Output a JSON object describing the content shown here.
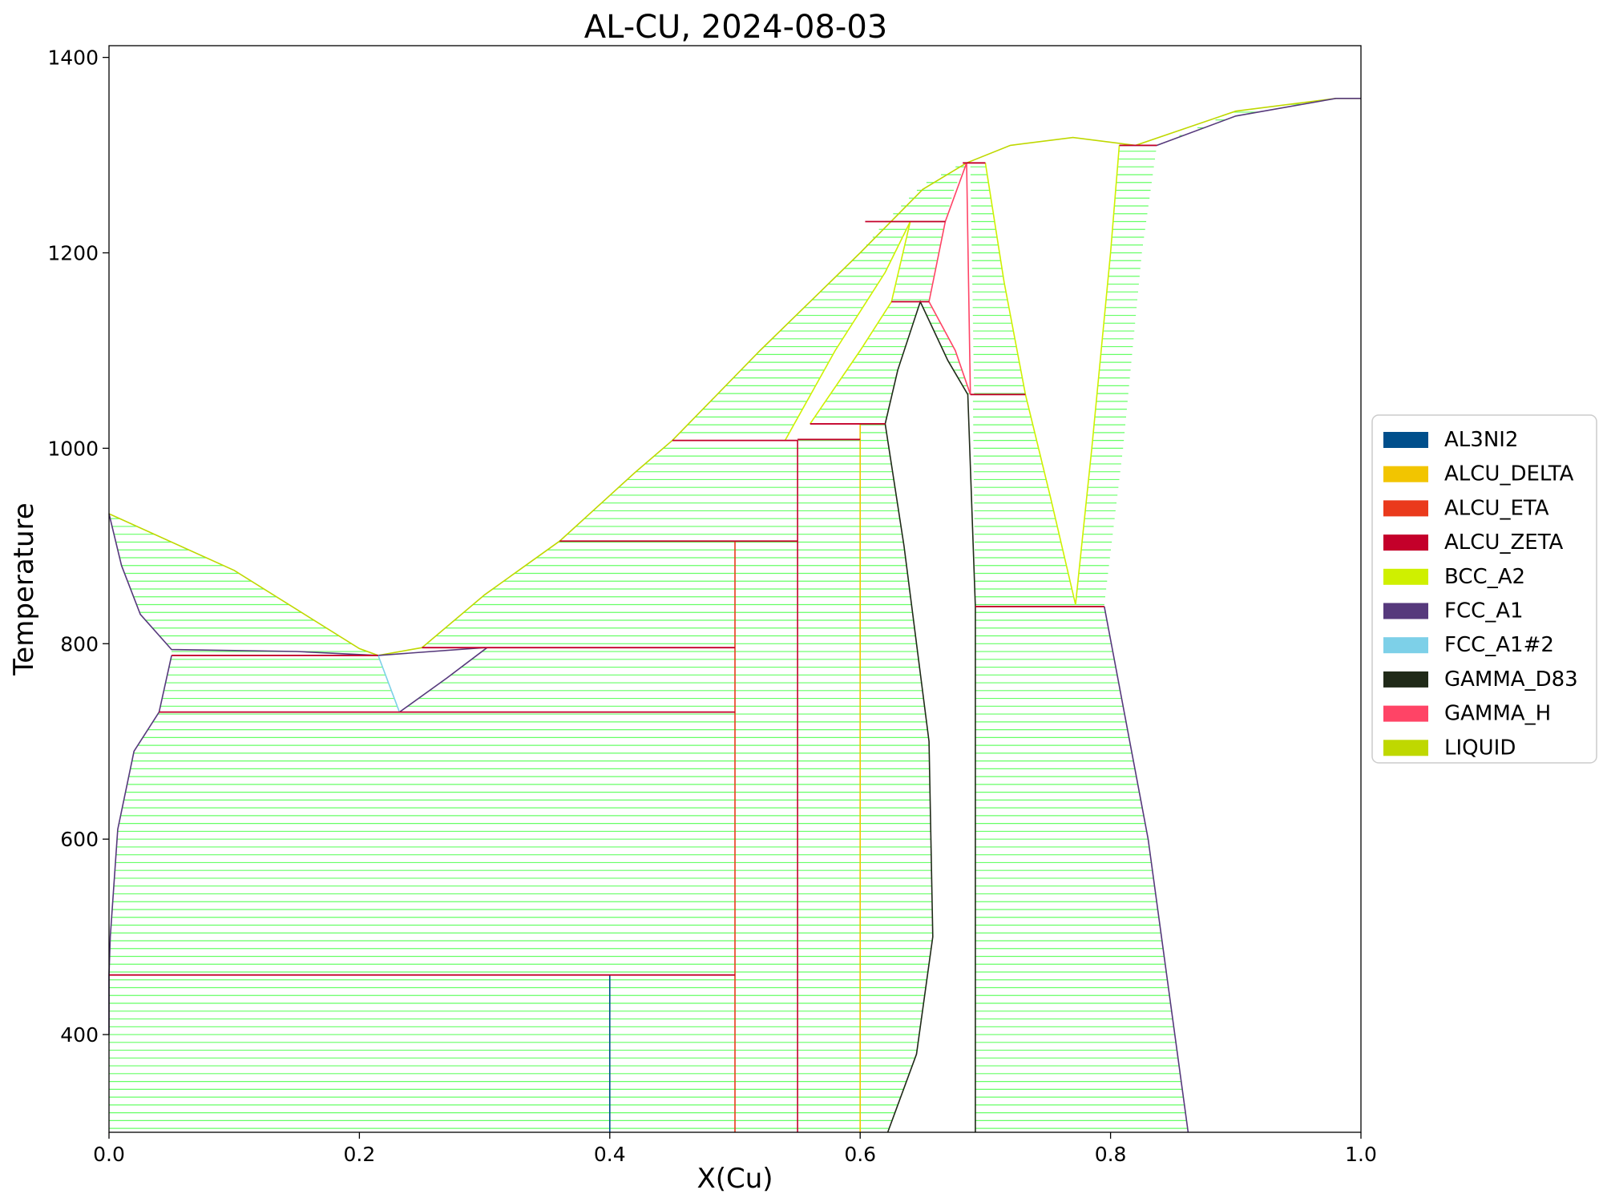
{
  "chart_data": {
    "type": "line",
    "title": "AL-CU, 2024-08-03",
    "xlabel": "X(Cu)",
    "ylabel": "Temperature",
    "xlim": [
      0.0,
      1.0
    ],
    "ylim": [
      300,
      1412
    ],
    "xticks": [
      0.0,
      0.2,
      0.4,
      0.6,
      0.8,
      1.0
    ],
    "xtick_labels": [
      "0.0",
      "0.2",
      "0.4",
      "0.6",
      "0.8",
      "1.0"
    ],
    "yticks": [
      400,
      600,
      800,
      1000,
      1200,
      1400
    ],
    "ytick_labels": [
      "400",
      "600",
      "800",
      "1000",
      "1200",
      "1400"
    ],
    "grid": false,
    "legend_position": "right",
    "tie_line_color": "#66ff66",
    "legend": [
      {
        "name": "AL3NI2",
        "color": "#004f8c"
      },
      {
        "name": "ALCU_DELTA",
        "color": "#f2c500"
      },
      {
        "name": "ALCU_ETA",
        "color": "#ea3a1c"
      },
      {
        "name": "ALCU_ZETA",
        "color": "#c4002a"
      },
      {
        "name": "BCC_A2",
        "color": "#cff000"
      },
      {
        "name": "FCC_A1",
        "color": "#56397c"
      },
      {
        "name": "FCC_A1#2",
        "color": "#7dd0e8"
      },
      {
        "name": "GAMMA_D83",
        "color": "#202a18"
      },
      {
        "name": "GAMMA_H",
        "color": "#ff4466"
      },
      {
        "name": "LIQUID",
        "color": "#bfd800"
      }
    ],
    "tie_regions": [
      {
        "left": [
          [
            0,
            933
          ],
          [
            0.01,
            880
          ],
          [
            0.025,
            830
          ],
          [
            0.05,
            794
          ]
        ],
        "right": [
          [
            0,
            933
          ],
          [
            0.1,
            875
          ],
          [
            0.2,
            795
          ],
          [
            0.215,
            788
          ]
        ]
      },
      {
        "left": [
          [
            0.05,
            788
          ],
          [
            0.04,
            730
          ]
        ],
        "right": [
          [
            0.215,
            788
          ],
          [
            0.232,
            730
          ]
        ]
      },
      {
        "left": [
          [
            0.04,
            730
          ],
          [
            0.02,
            690
          ],
          [
            0.007,
            610
          ],
          [
            0.001,
            500
          ],
          [
            0,
            461
          ]
        ],
        "right": [
          [
            0.5,
            730
          ],
          [
            0.5,
            461
          ]
        ]
      },
      {
        "left": [
          [
            0,
            461
          ],
          [
            0,
            300
          ]
        ],
        "right": [
          [
            0.4,
            461
          ],
          [
            0.4,
            300
          ]
        ]
      },
      {
        "left": [
          [
            0.4,
            461
          ],
          [
            0.4,
            300
          ]
        ],
        "right": [
          [
            0.5,
            461
          ],
          [
            0.5,
            300
          ]
        ]
      },
      {
        "left": [
          [
            0.232,
            730
          ],
          [
            0.27,
            765
          ],
          [
            0.302,
            796
          ]
        ],
        "right": [
          [
            0.5,
            730
          ],
          [
            0.5,
            796
          ]
        ]
      },
      {
        "left": [
          [
            0.25,
            796
          ],
          [
            0.3,
            850
          ],
          [
            0.36,
            905
          ]
        ],
        "right": [
          [
            0.5,
            796
          ],
          [
            0.5,
            905
          ]
        ]
      },
      {
        "left": [
          [
            0.36,
            905
          ],
          [
            0.42,
            975
          ],
          [
            0.45,
            1008
          ]
        ],
        "right": [
          [
            0.55,
            905
          ],
          [
            0.55,
            1008
          ]
        ]
      },
      {
        "left": [
          [
            0.5,
            905
          ],
          [
            0.5,
            300
          ]
        ],
        "right": [
          [
            0.55,
            905
          ],
          [
            0.55,
            300
          ]
        ]
      },
      {
        "left": [
          [
            0.45,
            1008
          ],
          [
            0.52,
            1100
          ],
          [
            0.6,
            1200
          ],
          [
            0.62,
            1232
          ]
        ],
        "right": [
          [
            0.54,
            1008
          ],
          [
            0.58,
            1100
          ],
          [
            0.62,
            1180
          ],
          [
            0.64,
            1232
          ]
        ]
      },
      {
        "left": [
          [
            0.55,
            1008
          ],
          [
            0.55,
            300
          ]
        ],
        "right": [
          [
            0.6,
            1008
          ],
          [
            0.6,
            300
          ]
        ]
      },
      {
        "left": [
          [
            0.56,
            1025
          ],
          [
            0.6,
            1100
          ],
          [
            0.625,
            1150
          ]
        ],
        "right": [
          [
            0.62,
            1025
          ],
          [
            0.63,
            1080
          ],
          [
            0.648,
            1150
          ]
        ]
      },
      {
        "left": [
          [
            0.6,
            1025
          ],
          [
            0.6,
            300
          ]
        ],
        "right": [
          [
            0.62,
            1025
          ],
          [
            0.635,
            900
          ],
          [
            0.655,
            700
          ],
          [
            0.658,
            500
          ],
          [
            0.645,
            380
          ],
          [
            0.622,
            300
          ]
        ]
      },
      {
        "left": [
          [
            0.625,
            1150
          ],
          [
            0.64,
            1232
          ]
        ],
        "right": [
          [
            0.655,
            1150
          ],
          [
            0.668,
            1232
          ]
        ]
      },
      {
        "left": [
          [
            0.62,
            1232
          ],
          [
            0.65,
            1270
          ],
          [
            0.682,
            1292
          ]
        ],
        "right": [
          [
            0.668,
            1232
          ],
          [
            0.675,
            1265
          ],
          [
            0.685,
            1292
          ]
        ]
      },
      {
        "left": [
          [
            0.648,
            1150
          ],
          [
            0.67,
            1090
          ],
          [
            0.686,
            1055
          ]
        ],
        "right": [
          [
            0.655,
            1150
          ],
          [
            0.676,
            1100
          ],
          [
            0.688,
            1055
          ]
        ]
      },
      {
        "left": [
          [
            0.688,
            1292
          ],
          [
            0.691,
            1055
          ]
        ],
        "right": [
          [
            0.7,
            1292
          ],
          [
            0.715,
            1170
          ],
          [
            0.732,
            1055
          ]
        ]
      },
      {
        "left": [
          [
            0.69,
            1055
          ],
          [
            0.692,
            838
          ]
        ],
        "right": [
          [
            0.732,
            1055
          ],
          [
            0.752,
            950
          ],
          [
            0.772,
            840
          ]
        ]
      },
      {
        "left": [
          [
            0.692,
            838
          ],
          [
            0.692,
            300
          ]
        ],
        "right": [
          [
            0.795,
            838
          ],
          [
            0.83,
            600
          ],
          [
            0.862,
            300
          ]
        ]
      },
      {
        "left": [
          [
            0.772,
            840
          ],
          [
            0.785,
            1000
          ],
          [
            0.8,
            1200
          ],
          [
            0.807,
            1310
          ]
        ],
        "right": [
          [
            0.795,
            840
          ],
          [
            0.81,
            1000
          ],
          [
            0.825,
            1200
          ],
          [
            0.837,
            1310
          ]
        ]
      },
      {
        "left": [
          [
            0.837,
            1310
          ],
          [
            0.9,
            1345
          ],
          [
            0.98,
            1358
          ]
        ],
        "right": [
          [
            0.837,
            1310
          ],
          [
            0.9,
            1340
          ],
          [
            0.98,
            1358
          ]
        ]
      }
    ],
    "curves": [
      {
        "phase": "LIQUID",
        "color": "#bfd800",
        "points": [
          [
            0,
            933
          ],
          [
            0.1,
            875
          ],
          [
            0.2,
            795
          ],
          [
            0.215,
            788
          ],
          [
            0.25,
            796
          ],
          [
            0.3,
            850
          ],
          [
            0.36,
            905
          ],
          [
            0.42,
            975
          ],
          [
            0.45,
            1008
          ],
          [
            0.52,
            1100
          ],
          [
            0.6,
            1200
          ],
          [
            0.65,
            1265
          ],
          [
            0.685,
            1292
          ],
          [
            0.72,
            1310
          ],
          [
            0.77,
            1318
          ],
          [
            0.82,
            1310
          ],
          [
            0.9,
            1345
          ],
          [
            0.98,
            1358
          ],
          [
            1.0,
            1358
          ]
        ]
      },
      {
        "phase": "FCC_A1",
        "color": "#56397c",
        "points": [
          [
            0,
            933
          ],
          [
            0.01,
            880
          ],
          [
            0.025,
            830
          ],
          [
            0.05,
            794
          ],
          [
            0.15,
            792
          ],
          [
            0.215,
            788
          ],
          [
            0.3,
            796
          ]
        ]
      },
      {
        "phase": "FCC_A1",
        "color": "#56397c",
        "points": [
          [
            0.05,
            788
          ],
          [
            0.04,
            730
          ],
          [
            0.02,
            690
          ],
          [
            0.007,
            610
          ],
          [
            0.001,
            500
          ],
          [
            0,
            461
          ],
          [
            0,
            400
          ]
        ]
      },
      {
        "phase": "FCC_A1",
        "color": "#56397c",
        "points": [
          [
            0.232,
            730
          ],
          [
            0.27,
            765
          ],
          [
            0.302,
            796
          ]
        ]
      },
      {
        "phase": "FCC_A1",
        "color": "#56397c",
        "points": [
          [
            0.795,
            838
          ],
          [
            0.83,
            600
          ],
          [
            0.862,
            300
          ]
        ]
      },
      {
        "phase": "FCC_A1",
        "color": "#56397c",
        "points": [
          [
            0.837,
            1310
          ],
          [
            0.9,
            1340
          ],
          [
            0.98,
            1358
          ],
          [
            1.0,
            1358
          ]
        ]
      },
      {
        "phase": "FCC_A1",
        "color": "#56397c",
        "points": [
          [
            0.807,
            1310
          ],
          [
            0.837,
            1310
          ]
        ]
      },
      {
        "phase": "FCC_A1#2",
        "color": "#7dd0e8",
        "points": [
          [
            0.215,
            788
          ],
          [
            0.232,
            730
          ]
        ]
      },
      {
        "phase": "BCC_A2",
        "color": "#cff000",
        "points": [
          [
            0.54,
            1008
          ],
          [
            0.58,
            1100
          ],
          [
            0.62,
            1180
          ],
          [
            0.64,
            1232
          ]
        ]
      },
      {
        "phase": "BCC_A2",
        "color": "#cff000",
        "points": [
          [
            0.56,
            1025
          ],
          [
            0.6,
            1100
          ],
          [
            0.625,
            1150
          ],
          [
            0.64,
            1232
          ]
        ]
      },
      {
        "phase": "BCC_A2",
        "color": "#cff000",
        "points": [
          [
            0.7,
            1292
          ],
          [
            0.715,
            1170
          ],
          [
            0.732,
            1055
          ],
          [
            0.752,
            950
          ],
          [
            0.772,
            840
          ],
          [
            0.785,
            1000
          ],
          [
            0.8,
            1200
          ],
          [
            0.807,
            1310
          ]
        ]
      },
      {
        "phase": "GAMMA_D83",
        "color": "#202a18",
        "points": [
          [
            0.622,
            300
          ],
          [
            0.645,
            380
          ],
          [
            0.658,
            500
          ],
          [
            0.655,
            700
          ],
          [
            0.635,
            900
          ],
          [
            0.62,
            1025
          ],
          [
            0.63,
            1080
          ],
          [
            0.648,
            1150
          ],
          [
            0.67,
            1090
          ],
          [
            0.686,
            1055
          ],
          [
            0.692,
            838
          ],
          [
            0.692,
            300
          ]
        ]
      },
      {
        "phase": "GAMMA_H",
        "color": "#ff4466",
        "points": [
          [
            0.655,
            1150
          ],
          [
            0.668,
            1232
          ],
          [
            0.685,
            1292
          ],
          [
            0.688,
            1055
          ]
        ]
      },
      {
        "phase": "GAMMA_H",
        "color": "#ff4466",
        "points": [
          [
            0.655,
            1150
          ],
          [
            0.676,
            1100
          ],
          [
            0.688,
            1055
          ]
        ]
      },
      {
        "phase": "GAMMA_H",
        "color": "#ff4466",
        "points": [
          [
            0.682,
            1292
          ],
          [
            0.7,
            1292
          ]
        ]
      },
      {
        "phase": "AL3NI2",
        "color": "#004f8c",
        "points": [
          [
            0.4,
            461
          ],
          [
            0.4,
            300
          ]
        ]
      },
      {
        "phase": "ALCU_ETA",
        "color": "#ea3a1c",
        "points": [
          [
            0.5,
            905
          ],
          [
            0.5,
            300
          ]
        ]
      },
      {
        "phase": "ALCU_ZETA",
        "color": "#c4002a",
        "points": [
          [
            0.55,
            1008
          ],
          [
            0.55,
            300
          ]
        ]
      },
      {
        "phase": "ALCU_DELTA",
        "color": "#f2c500",
        "points": [
          [
            0.6,
            1025
          ],
          [
            0.6,
            300
          ]
        ]
      }
    ],
    "invariants": [
      {
        "T": 788,
        "x0": 0.05,
        "x1": 0.215,
        "color": "#c4002a"
      },
      {
        "T": 730,
        "x0": 0.04,
        "x1": 0.5,
        "color": "#c4002a"
      },
      {
        "T": 461,
        "x0": 0.0,
        "x1": 0.5,
        "color": "#c4002a"
      },
      {
        "T": 796,
        "x0": 0.25,
        "x1": 0.5,
        "color": "#c4002a"
      },
      {
        "T": 905,
        "x0": 0.36,
        "x1": 0.55,
        "color": "#c4002a"
      },
      {
        "T": 1008,
        "x0": 0.45,
        "x1": 0.55,
        "color": "#c4002a"
      },
      {
        "T": 1009,
        "x0": 0.55,
        "x1": 0.6,
        "color": "#c4002a"
      },
      {
        "T": 1025,
        "x0": 0.56,
        "x1": 0.62,
        "color": "#c4002a"
      },
      {
        "T": 1150,
        "x0": 0.625,
        "x1": 0.655,
        "color": "#c4002a"
      },
      {
        "T": 1232,
        "x0": 0.604,
        "x1": 0.668,
        "color": "#c4002a"
      },
      {
        "T": 1292,
        "x0": 0.682,
        "x1": 0.7,
        "color": "#c4002a"
      },
      {
        "T": 1055,
        "x0": 0.688,
        "x1": 0.732,
        "color": "#c4002a"
      },
      {
        "T": 838,
        "x0": 0.692,
        "x1": 0.795,
        "color": "#c4002a"
      },
      {
        "T": 1310,
        "x0": 0.807,
        "x1": 0.837,
        "color": "#c4002a"
      }
    ]
  }
}
